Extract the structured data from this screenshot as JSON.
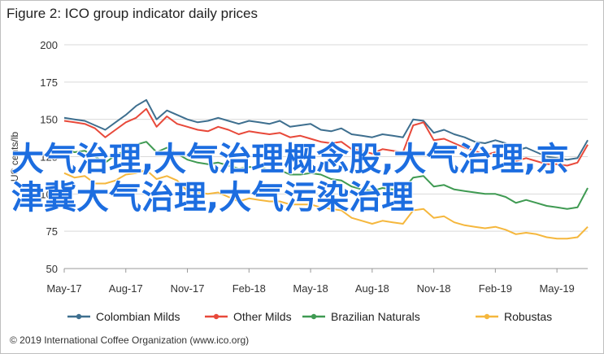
{
  "title": "Figure 2: ICO group indicator daily prices",
  "credit": "© 2019 International Coffee Organization (www.ico.org)",
  "overlay_text": "大气治理,大气治理概念股,大气治理,京津冀大气治理,大气污染治理",
  "chart_data": {
    "type": "line",
    "title": "Figure 2: ICO group indicator daily prices",
    "ylabel": "US cents/lb",
    "xlabel": "",
    "ylim": [
      50,
      200
    ],
    "yticks": [
      50,
      75,
      100,
      125,
      150,
      175,
      200
    ],
    "x_tick_labels": [
      "May-17",
      "Aug-17",
      "Nov-17",
      "Feb-18",
      "May-18",
      "Aug-18",
      "Nov-18",
      "Feb-19",
      "May-19"
    ],
    "grid": true,
    "legend_position": "bottom",
    "x": [
      0,
      0.5,
      1,
      1.5,
      2,
      2.5,
      3,
      3.5,
      4,
      4.5,
      5,
      5.5,
      6,
      6.5,
      7,
      7.5,
      8,
      8.5,
      9,
      9.5,
      10,
      10.5,
      11,
      11.5,
      12,
      12.5,
      13,
      13.5,
      14,
      14.5,
      15,
      15.5,
      16,
      16.5,
      17,
      17.5,
      18,
      18.5,
      19,
      19.5,
      20,
      20.5,
      21,
      21.5,
      22,
      22.5,
      23,
      23.5,
      24,
      24.5,
      25,
      25.5
    ],
    "series": [
      {
        "name": "Colombian Milds",
        "color": "#3e6f8f",
        "values": [
          151,
          150,
          149,
          146,
          143,
          148,
          153,
          159,
          163,
          150,
          156,
          153,
          150,
          148,
          149,
          151,
          149,
          147,
          149,
          148,
          147,
          149,
          145,
          146,
          147,
          143,
          142,
          144,
          140,
          139,
          138,
          140,
          139,
          138,
          150,
          149,
          141,
          143,
          140,
          138,
          135,
          134,
          136,
          134,
          129,
          131,
          128,
          125,
          124,
          123,
          124,
          136
        ]
      },
      {
        "name": "Other Milds",
        "color": "#e8493a",
        "values": [
          149,
          148,
          147,
          144,
          138,
          143,
          148,
          151,
          157,
          145,
          152,
          147,
          145,
          143,
          142,
          145,
          143,
          140,
          142,
          141,
          140,
          141,
          138,
          139,
          137,
          135,
          134,
          135,
          130,
          129,
          127,
          130,
          129,
          128,
          146,
          148,
          136,
          137,
          134,
          131,
          129,
          126,
          128,
          126,
          122,
          124,
          122,
          120,
          120,
          119,
          121,
          133
        ]
      },
      {
        "name": "Brazilian Naturals",
        "color": "#3f9a52",
        "values": [
          130,
          128,
          129,
          125,
          121,
          126,
          129,
          133,
          135,
          128,
          131,
          127,
          123,
          121,
          120,
          121,
          119,
          117,
          118,
          118,
          116,
          116,
          113,
          113,
          114,
          113,
          110,
          109,
          105,
          103,
          102,
          104,
          103,
          103,
          111,
          112,
          105,
          106,
          103,
          102,
          101,
          100,
          100,
          98,
          94,
          96,
          94,
          92,
          91,
          90,
          91,
          104
        ]
      },
      {
        "name": "Robustas",
        "color": "#f5b73d",
        "values": [
          114,
          111,
          112,
          107,
          107,
          109,
          113,
          114,
          116,
          110,
          112,
          109,
          102,
          101,
          100,
          101,
          98,
          95,
          97,
          96,
          95,
          95,
          93,
          93,
          93,
          91,
          90,
          89,
          84,
          82,
          80,
          82,
          81,
          80,
          89,
          90,
          84,
          85,
          81,
          79,
          78,
          77,
          78,
          76,
          73,
          74,
          73,
          71,
          70,
          70,
          71,
          78
        ]
      }
    ]
  }
}
